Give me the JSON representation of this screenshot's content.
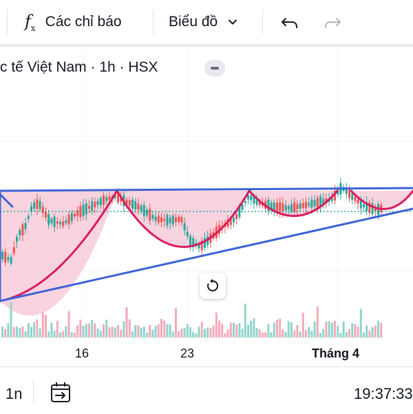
{
  "toolbar": {
    "indicators_label": "Các chỉ báo",
    "chart_label": "Biểu đồ"
  },
  "legend": {
    "title": "c tế Việt Nam · 1h · HSX"
  },
  "axis": {
    "x_ticks": [
      "16",
      "23",
      "Tháng 4"
    ]
  },
  "bottom": {
    "range_label": "1n",
    "clock": "19:37:33"
  },
  "colors": {
    "up": "#26a69a",
    "down": "#ef5350",
    "pattern_line": "#3b63d6",
    "pattern_fill": "#f7c4d4",
    "cup_stroke": "#d81b60",
    "grid": "#f0f3fa"
  },
  "icons": {
    "indicators": "fx-icon",
    "chart_dropdown": "chevron-down-icon",
    "undo": "undo-icon",
    "redo": "redo-icon",
    "legend_toggle": "minus-icon",
    "reset": "reset-icon",
    "date_range": "calendar-range-icon"
  }
}
